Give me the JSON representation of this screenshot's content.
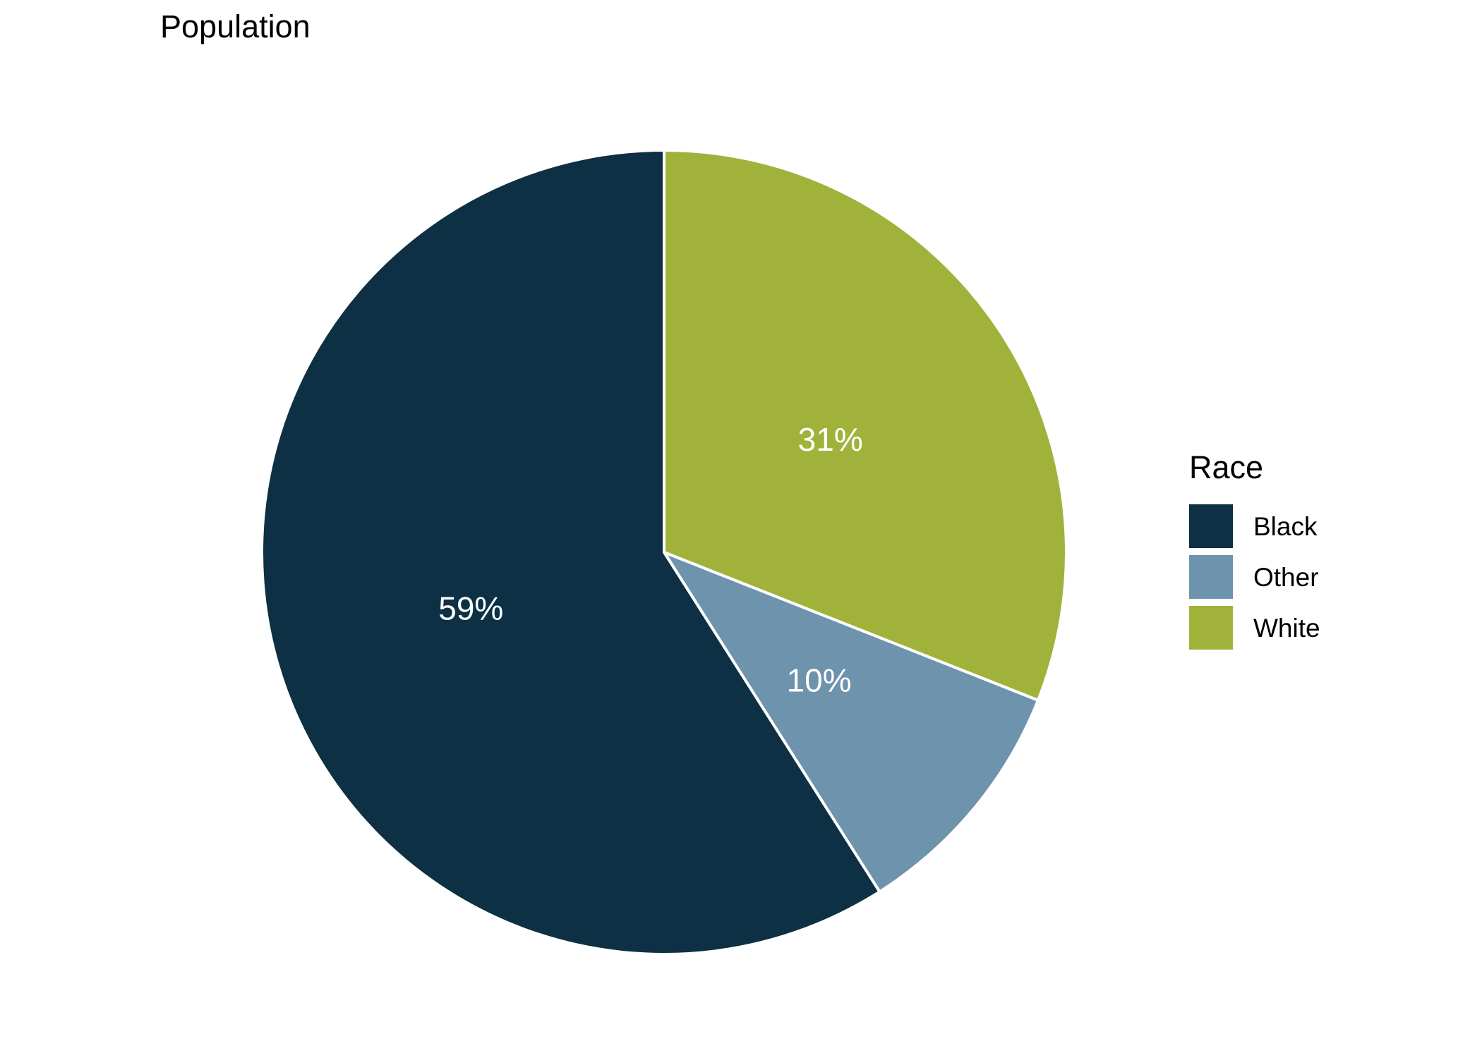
{
  "chart": {
    "title": "Population",
    "legend": {
      "title": "Race",
      "items": [
        {
          "label": "Black",
          "color": "#0d3044"
        },
        {
          "label": "Other",
          "color": "#6e93ac"
        },
        {
          "label": "White",
          "color": "#a1b23b"
        }
      ]
    }
  },
  "chart_data": {
    "type": "pie",
    "title": "Population",
    "legend_title": "Race",
    "legend_position": "right",
    "start_angle_deg": 0,
    "direction": "clockwise",
    "categories": [
      "White",
      "Other",
      "Black"
    ],
    "values": [
      31,
      10,
      59
    ],
    "unit": "percent",
    "slices": [
      {
        "label": "White",
        "value": 31,
        "value_label": "31%",
        "color": "#a1b23b"
      },
      {
        "label": "Other",
        "value": 10,
        "value_label": "10%",
        "color": "#6e93ac"
      },
      {
        "label": "Black",
        "value": 59,
        "value_label": "59%",
        "color": "#0d3044"
      }
    ],
    "slice_border_color": "#ffffff",
    "value_label_color": "#ffffff"
  }
}
